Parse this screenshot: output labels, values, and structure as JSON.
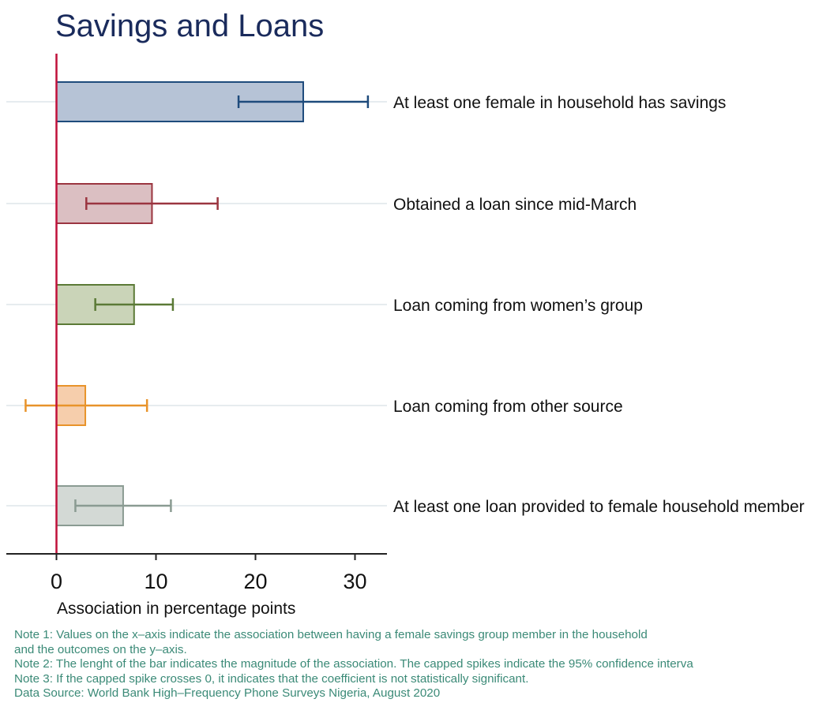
{
  "chart_data": {
    "type": "bar",
    "orientation": "horizontal",
    "title": "Savings and Loans",
    "xlabel": "Association in percentage points",
    "ylabel": "",
    "xlim": [
      -5,
      33
    ],
    "xticks": [
      0,
      10,
      20,
      30
    ],
    "grid": "horizontal lines at each category",
    "reference_line": 0,
    "categories": [
      "At least one female in household has savings",
      "Obtained a loan since mid-March",
      "Loan coming from women’s group",
      "Loan coming from other source",
      "At least one loan provided to female household member"
    ],
    "values": [
      24.8,
      9.6,
      7.8,
      2.9,
      6.7
    ],
    "ci_low": [
      18.3,
      3.0,
      3.9,
      -3.1,
      1.9
    ],
    "ci_high": [
      31.3,
      16.2,
      11.7,
      9.1,
      11.5
    ],
    "colors": {
      "fill": [
        "#b6c3d6",
        "#dbbfc2",
        "#cad4b8",
        "#f6ceac",
        "#d3d9d5"
      ],
      "stroke": [
        "#1e4b7c",
        "#9b3540",
        "#5b7a36",
        "#e8932a",
        "#8a9b92"
      ]
    }
  },
  "notes": [
    "Note 1: Values on the x–axis indicate the association between having a female savings group member in the household",
    "and the outcomes on the y–axis.",
    "Note 2: The lenght of the bar indicates the magnitude of the association. The capped spikes indicate the 95% confidence interva",
    "Note 3: If the capped spike crosses 0, it indicates that the coefficient is not statistically significant.",
    "Data Source: World Bank High–Frequency Phone Surveys Nigeria, August 2020"
  ],
  "colors": {
    "title": "#1a2b5c",
    "zero_line": "#c0103a",
    "grid": "#e6ecef",
    "axis": "#222222",
    "notes": "#3b8a77"
  }
}
